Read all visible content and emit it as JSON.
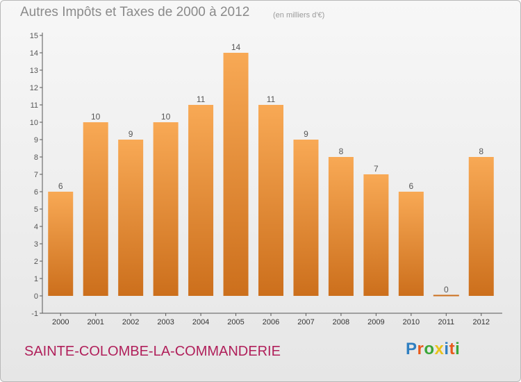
{
  "header": {
    "title": "Autres Impôts et Taxes de 2000 à 2012",
    "subtitle": "(en milliers d'€)"
  },
  "footer": {
    "commune": "SAINTE-COLOMBE-LA-COMMANDERIE",
    "brand_letters": [
      "P",
      "r",
      "o",
      "x",
      "i",
      "t",
      "i"
    ],
    "brand_colors": [
      "#2f7fc1",
      "#e85a1b",
      "#3aa638",
      "#e8c21b",
      "#2f7fc1",
      "#e85a1b",
      "#3aa638"
    ]
  },
  "colors": {
    "bar_top": "#f8a955",
    "bar_bottom": "#cc6f1c",
    "axis": "#555555",
    "grid": "#cfcfcf"
  },
  "chart_data": {
    "type": "bar",
    "categories": [
      "2000",
      "2001",
      "2002",
      "2003",
      "2004",
      "2005",
      "2006",
      "2007",
      "2008",
      "2009",
      "2010",
      "2011",
      "2012"
    ],
    "values": [
      6,
      10,
      9,
      10,
      11,
      14,
      11,
      9,
      8,
      7,
      6,
      0,
      8
    ],
    "y_ticks": [
      "-1",
      "0",
      "1",
      "2",
      "3",
      "4",
      "5",
      "6",
      "7",
      "8",
      "9",
      "10",
      "11",
      "12",
      "13",
      "14",
      "15"
    ],
    "ylim": [
      -1,
      15
    ],
    "grid": false
  }
}
